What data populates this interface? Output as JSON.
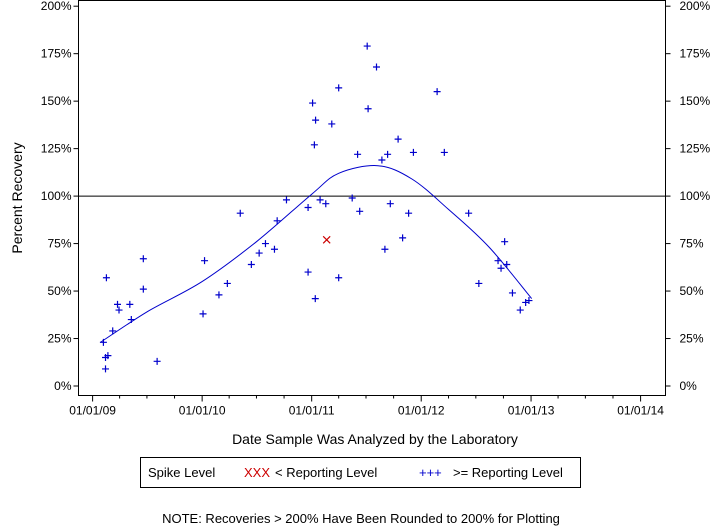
{
  "chart_data": {
    "type": "scatter",
    "xlabel": "Date Sample Was Analyzed by the Laboratory",
    "ylabel": "Percent Recovery",
    "x_tick_labels": [
      "01/01/09",
      "01/01/10",
      "01/01/11",
      "01/01/12",
      "01/01/13",
      "01/01/14"
    ],
    "x_tick_dates": [
      "2009-01-01",
      "2010-01-01",
      "2011-01-01",
      "2012-01-01",
      "2013-01-01",
      "2014-01-01"
    ],
    "xlim": [
      "2008-11-15",
      "2014-03-25"
    ],
    "y_tick_labels": [
      "0%",
      "25%",
      "50%",
      "75%",
      "100%",
      "125%",
      "150%",
      "175%",
      "200%"
    ],
    "y_ticks": [
      0,
      25,
      50,
      75,
      100,
      125,
      150,
      175,
      200
    ],
    "ylim": [
      -5,
      203
    ],
    "reference_line_y": 100,
    "grid": false,
    "legend": {
      "position": "bottom",
      "items": [
        {
          "label": "Spike Level",
          "marker": "",
          "color": ""
        },
        {
          "label": "< Reporting Level",
          "marker": "XXX",
          "color": "#cc0000"
        },
        {
          "label": ">= Reporting Level",
          "marker": "+++",
          "color": "#0000cc"
        }
      ]
    },
    "note": "NOTE: Recoveries > 200% Have Been Rounded to 200% for Plotting",
    "series": [
      {
        "name": ">= Reporting Level",
        "marker": "plus",
        "color": "#0000cc",
        "points": [
          {
            "x": "2009-02-06",
            "y": 23
          },
          {
            "x": "2009-02-13",
            "y": 9
          },
          {
            "x": "2009-02-13",
            "y": 15
          },
          {
            "x": "2009-02-16",
            "y": 57
          },
          {
            "x": "2009-02-21",
            "y": 16
          },
          {
            "x": "2009-03-09",
            "y": 29
          },
          {
            "x": "2009-03-25",
            "y": 43
          },
          {
            "x": "2009-03-30",
            "y": 40
          },
          {
            "x": "2009-05-05",
            "y": 43
          },
          {
            "x": "2009-05-10",
            "y": 35
          },
          {
            "x": "2009-06-19",
            "y": 67
          },
          {
            "x": "2009-06-19",
            "y": 51
          },
          {
            "x": "2009-08-04",
            "y": 13
          },
          {
            "x": "2010-01-04",
            "y": 38
          },
          {
            "x": "2010-01-09",
            "y": 66
          },
          {
            "x": "2010-02-26",
            "y": 48
          },
          {
            "x": "2010-03-26",
            "y": 54
          },
          {
            "x": "2010-05-08",
            "y": 91
          },
          {
            "x": "2010-06-14",
            "y": 64
          },
          {
            "x": "2010-07-10",
            "y": 70
          },
          {
            "x": "2010-07-31",
            "y": 75
          },
          {
            "x": "2010-08-30",
            "y": 72
          },
          {
            "x": "2010-09-08",
            "y": 87
          },
          {
            "x": "2010-10-09",
            "y": 98
          },
          {
            "x": "2010-12-20",
            "y": 94
          },
          {
            "x": "2010-12-20",
            "y": 60
          },
          {
            "x": "2011-01-04",
            "y": 149
          },
          {
            "x": "2011-01-10",
            "y": 127
          },
          {
            "x": "2011-01-13",
            "y": 46
          },
          {
            "x": "2011-01-14",
            "y": 140
          },
          {
            "x": "2011-01-29",
            "y": 98
          },
          {
            "x": "2011-02-17",
            "y": 96
          },
          {
            "x": "2011-03-09",
            "y": 138
          },
          {
            "x": "2011-04-01",
            "y": 157
          },
          {
            "x": "2011-04-01",
            "y": 57
          },
          {
            "x": "2011-05-16",
            "y": 99
          },
          {
            "x": "2011-06-03",
            "y": 122
          },
          {
            "x": "2011-06-10",
            "y": 92
          },
          {
            "x": "2011-07-05",
            "y": 179
          },
          {
            "x": "2011-07-08",
            "y": 146
          },
          {
            "x": "2011-08-05",
            "y": 168
          },
          {
            "x": "2011-08-23",
            "y": 119
          },
          {
            "x": "2011-09-02",
            "y": 72
          },
          {
            "x": "2011-09-11",
            "y": 122
          },
          {
            "x": "2011-09-20",
            "y": 96
          },
          {
            "x": "2011-10-16",
            "y": 130
          },
          {
            "x": "2011-10-31",
            "y": 78
          },
          {
            "x": "2011-11-20",
            "y": 91
          },
          {
            "x": "2011-12-06",
            "y": 123
          },
          {
            "x": "2012-02-23",
            "y": 155
          },
          {
            "x": "2012-03-18",
            "y": 123
          },
          {
            "x": "2012-06-07",
            "y": 91
          },
          {
            "x": "2012-07-11",
            "y": 54
          },
          {
            "x": "2012-09-13",
            "y": 66
          },
          {
            "x": "2012-09-23",
            "y": 62
          },
          {
            "x": "2012-10-05",
            "y": 76
          },
          {
            "x": "2012-10-12",
            "y": 64
          },
          {
            "x": "2012-10-31",
            "y": 49
          },
          {
            "x": "2012-11-26",
            "y": 40
          },
          {
            "x": "2012-12-14",
            "y": 44
          },
          {
            "x": "2012-12-25",
            "y": 45
          }
        ]
      },
      {
        "name": "< Reporting Level",
        "marker": "x",
        "color": "#cc0000",
        "points": [
          {
            "x": "2011-02-20",
            "y": 77
          }
        ]
      }
    ],
    "trend_line": {
      "color": "#0000cc",
      "points": [
        {
          "x": "2009-01-27",
          "y": 23
        },
        {
          "x": "2009-07-01",
          "y": 39
        },
        {
          "x": "2010-01-01",
          "y": 55
        },
        {
          "x": "2010-07-01",
          "y": 76
        },
        {
          "x": "2011-01-01",
          "y": 101
        },
        {
          "x": "2011-04-01",
          "y": 112
        },
        {
          "x": "2011-08-10",
          "y": 116
        },
        {
          "x": "2011-12-01",
          "y": 109
        },
        {
          "x": "2012-04-01",
          "y": 93
        },
        {
          "x": "2012-08-15",
          "y": 73
        },
        {
          "x": "2013-01-03",
          "y": 46
        }
      ]
    }
  }
}
